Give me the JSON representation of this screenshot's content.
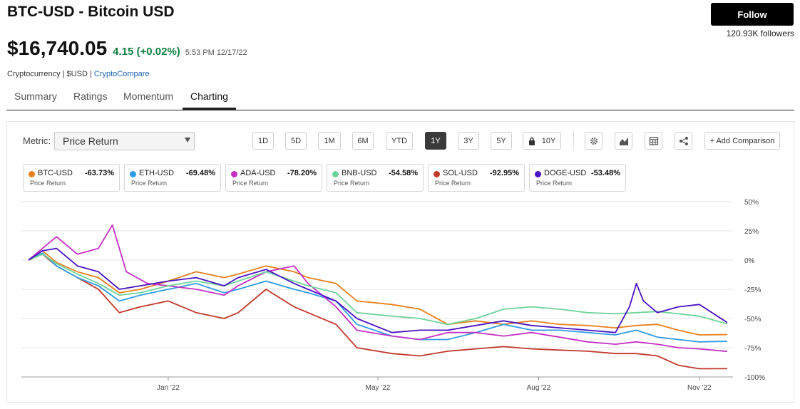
{
  "header": {
    "symbol": "BTC-USD",
    "name": " - Bitcoin USD",
    "price": "$16,740.05",
    "change": "4.15 (+0.02%)",
    "timestamp": "5:53 PM 12/17/22",
    "category": "Cryptocurrency | $USD | ",
    "source": "CryptoCompare",
    "follow_label": "Follow",
    "followers": "120.93K followers"
  },
  "tabs": [
    {
      "label": "Summary"
    },
    {
      "label": "Ratings"
    },
    {
      "label": "Momentum"
    },
    {
      "label": "Charting"
    }
  ],
  "active_tab": "Charting",
  "toolbar": {
    "metric_label": "Metric:",
    "metric_value": "Price Return",
    "ranges": [
      "1D",
      "5D",
      "1M",
      "6M",
      "YTD",
      "1Y",
      "3Y",
      "5Y",
      "10Y"
    ],
    "active_range": "1Y",
    "locked_range": "10Y",
    "icons": [
      "gear-icon",
      "chart-type-icon",
      "table-icon",
      "share-icon"
    ],
    "add_comparison": "+ Add Comparison"
  },
  "legend": [
    {
      "symbol": "BTC-USD",
      "pct": "-63.73%",
      "sub": "Price Return",
      "color": "#e8801e"
    },
    {
      "symbol": "ETH-USD",
      "pct": "-69.48%",
      "sub": "Price Return",
      "color": "#2f9be6"
    },
    {
      "symbol": "ADA-USD",
      "pct": "-78.20%",
      "sub": "Price Return",
      "color": "#c430c4"
    },
    {
      "symbol": "BNB-USD",
      "pct": "-54.58%",
      "sub": "Price Return",
      "color": "#6ed39a"
    },
    {
      "symbol": "SOL-USD",
      "pct": "-92.95%",
      "sub": "Price Return",
      "color": "#c0392b"
    },
    {
      "symbol": "DOGE-USD",
      "pct": "-53.48%",
      "sub": "Price Return",
      "color": "#4a13c2"
    }
  ],
  "chart_data": {
    "type": "line",
    "x_ticks": [
      {
        "label": "Jan '22",
        "t": 0.2
      },
      {
        "label": "May '22",
        "t": 0.5
      },
      {
        "label": "Aug '22",
        "t": 0.73
      },
      {
        "label": "Nov '22",
        "t": 0.96
      }
    ],
    "y_ticks": [
      "50%",
      "25%",
      "0%",
      "-25%",
      "-50%",
      "-75%",
      "-100%"
    ],
    "ylim": [
      -100,
      50
    ],
    "x_range": [
      0,
      1
    ],
    "series": [
      {
        "name": "BTC-USD",
        "color": "#e8801e",
        "points": [
          [
            0,
            0
          ],
          [
            0.02,
            8
          ],
          [
            0.04,
            -2
          ],
          [
            0.07,
            -10
          ],
          [
            0.1,
            -15
          ],
          [
            0.13,
            -28
          ],
          [
            0.16,
            -25
          ],
          [
            0.2,
            -18
          ],
          [
            0.24,
            -10
          ],
          [
            0.28,
            -15
          ],
          [
            0.3,
            -12
          ],
          [
            0.34,
            -5
          ],
          [
            0.38,
            -10
          ],
          [
            0.4,
            -15
          ],
          [
            0.44,
            -20
          ],
          [
            0.47,
            -35
          ],
          [
            0.52,
            -38
          ],
          [
            0.56,
            -42
          ],
          [
            0.6,
            -55
          ],
          [
            0.64,
            -52
          ],
          [
            0.68,
            -55
          ],
          [
            0.72,
            -52
          ],
          [
            0.76,
            -55
          ],
          [
            0.8,
            -56
          ],
          [
            0.84,
            -58
          ],
          [
            0.87,
            -56
          ],
          [
            0.9,
            -55
          ],
          [
            0.93,
            -60
          ],
          [
            0.96,
            -64
          ],
          [
            1,
            -63.7
          ]
        ]
      },
      {
        "name": "ETH-USD",
        "color": "#2f9be6",
        "points": [
          [
            0,
            0
          ],
          [
            0.02,
            6
          ],
          [
            0.04,
            -5
          ],
          [
            0.07,
            -15
          ],
          [
            0.1,
            -22
          ],
          [
            0.13,
            -35
          ],
          [
            0.16,
            -30
          ],
          [
            0.2,
            -25
          ],
          [
            0.24,
            -20
          ],
          [
            0.28,
            -28
          ],
          [
            0.3,
            -25
          ],
          [
            0.34,
            -18
          ],
          [
            0.38,
            -25
          ],
          [
            0.4,
            -28
          ],
          [
            0.44,
            -35
          ],
          [
            0.47,
            -55
          ],
          [
            0.52,
            -65
          ],
          [
            0.56,
            -68
          ],
          [
            0.6,
            -68
          ],
          [
            0.64,
            -62
          ],
          [
            0.68,
            -55
          ],
          [
            0.72,
            -60
          ],
          [
            0.76,
            -60
          ],
          [
            0.8,
            -62
          ],
          [
            0.84,
            -64
          ],
          [
            0.87,
            -60
          ],
          [
            0.9,
            -66
          ],
          [
            0.93,
            -68
          ],
          [
            0.96,
            -70
          ],
          [
            1,
            -69.5
          ]
        ]
      },
      {
        "name": "ADA-USD",
        "color": "#c430c4",
        "points": [
          [
            0,
            0
          ],
          [
            0.02,
            10
          ],
          [
            0.04,
            20
          ],
          [
            0.07,
            5
          ],
          [
            0.1,
            10
          ],
          [
            0.12,
            30
          ],
          [
            0.14,
            -10
          ],
          [
            0.17,
            -20
          ],
          [
            0.2,
            -22
          ],
          [
            0.24,
            -25
          ],
          [
            0.28,
            -30
          ],
          [
            0.3,
            -22
          ],
          [
            0.34,
            -10
          ],
          [
            0.38,
            -5
          ],
          [
            0.4,
            -20
          ],
          [
            0.44,
            -40
          ],
          [
            0.47,
            -60
          ],
          [
            0.52,
            -65
          ],
          [
            0.56,
            -68
          ],
          [
            0.6,
            -62
          ],
          [
            0.64,
            -62
          ],
          [
            0.68,
            -65
          ],
          [
            0.72,
            -62
          ],
          [
            0.76,
            -66
          ],
          [
            0.8,
            -70
          ],
          [
            0.84,
            -72
          ],
          [
            0.87,
            -70
          ],
          [
            0.9,
            -72
          ],
          [
            0.93,
            -75
          ],
          [
            0.96,
            -76
          ],
          [
            1,
            -78.2
          ]
        ]
      },
      {
        "name": "BNB-USD",
        "color": "#6ed39a",
        "points": [
          [
            0,
            0
          ],
          [
            0.02,
            5
          ],
          [
            0.04,
            -3
          ],
          [
            0.07,
            -12
          ],
          [
            0.1,
            -20
          ],
          [
            0.13,
            -30
          ],
          [
            0.16,
            -28
          ],
          [
            0.2,
            -22
          ],
          [
            0.24,
            -18
          ],
          [
            0.28,
            -22
          ],
          [
            0.3,
            -18
          ],
          [
            0.34,
            -10
          ],
          [
            0.38,
            -18
          ],
          [
            0.4,
            -22
          ],
          [
            0.44,
            -28
          ],
          [
            0.47,
            -45
          ],
          [
            0.52,
            -48
          ],
          [
            0.56,
            -50
          ],
          [
            0.6,
            -55
          ],
          [
            0.64,
            -50
          ],
          [
            0.68,
            -42
          ],
          [
            0.72,
            -40
          ],
          [
            0.76,
            -42
          ],
          [
            0.8,
            -45
          ],
          [
            0.84,
            -46
          ],
          [
            0.87,
            -45
          ],
          [
            0.9,
            -44
          ],
          [
            0.93,
            -46
          ],
          [
            0.96,
            -48
          ],
          [
            1,
            -54.6
          ]
        ]
      },
      {
        "name": "SOL-USD",
        "color": "#c0392b",
        "points": [
          [
            0,
            0
          ],
          [
            0.02,
            5
          ],
          [
            0.04,
            -5
          ],
          [
            0.07,
            -15
          ],
          [
            0.1,
            -25
          ],
          [
            0.13,
            -45
          ],
          [
            0.16,
            -40
          ],
          [
            0.2,
            -35
          ],
          [
            0.24,
            -45
          ],
          [
            0.28,
            -50
          ],
          [
            0.3,
            -45
          ],
          [
            0.34,
            -25
          ],
          [
            0.38,
            -40
          ],
          [
            0.4,
            -45
          ],
          [
            0.44,
            -55
          ],
          [
            0.47,
            -75
          ],
          [
            0.52,
            -80
          ],
          [
            0.56,
            -82
          ],
          [
            0.6,
            -78
          ],
          [
            0.64,
            -76
          ],
          [
            0.68,
            -74
          ],
          [
            0.72,
            -76
          ],
          [
            0.76,
            -77
          ],
          [
            0.8,
            -78
          ],
          [
            0.84,
            -80
          ],
          [
            0.87,
            -80
          ],
          [
            0.9,
            -82
          ],
          [
            0.93,
            -90
          ],
          [
            0.96,
            -93
          ],
          [
            1,
            -92.9
          ]
        ]
      },
      {
        "name": "DOGE-USD",
        "color": "#4a13c2",
        "points": [
          [
            0,
            0
          ],
          [
            0.02,
            8
          ],
          [
            0.04,
            10
          ],
          [
            0.07,
            -5
          ],
          [
            0.1,
            -10
          ],
          [
            0.13,
            -25
          ],
          [
            0.16,
            -22
          ],
          [
            0.2,
            -18
          ],
          [
            0.24,
            -15
          ],
          [
            0.28,
            -22
          ],
          [
            0.3,
            -15
          ],
          [
            0.34,
            -8
          ],
          [
            0.38,
            -20
          ],
          [
            0.4,
            -25
          ],
          [
            0.44,
            -35
          ],
          [
            0.47,
            -50
          ],
          [
            0.52,
            -62
          ],
          [
            0.56,
            -60
          ],
          [
            0.6,
            -60
          ],
          [
            0.64,
            -56
          ],
          [
            0.68,
            -52
          ],
          [
            0.72,
            -56
          ],
          [
            0.76,
            -58
          ],
          [
            0.8,
            -60
          ],
          [
            0.84,
            -62
          ],
          [
            0.86,
            -40
          ],
          [
            0.87,
            -20
          ],
          [
            0.88,
            -35
          ],
          [
            0.9,
            -45
          ],
          [
            0.93,
            -40
          ],
          [
            0.96,
            -38
          ],
          [
            1,
            -53.5
          ]
        ]
      }
    ]
  }
}
